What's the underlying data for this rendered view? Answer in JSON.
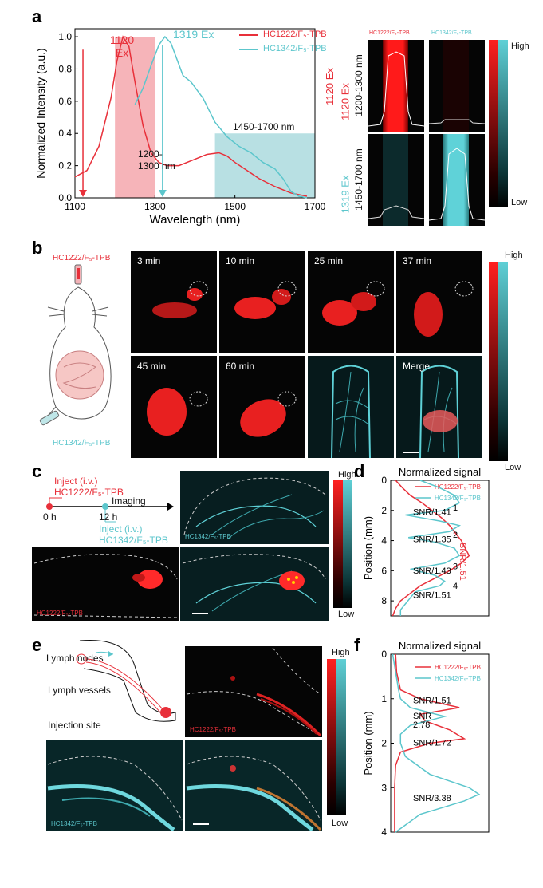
{
  "panel_a": {
    "letter": "a",
    "ex1": {
      "wavelength": "1120",
      "unit": "Ex"
    },
    "ex2_label": "1319 Ex",
    "band1_label": "1200-\n1300 nm",
    "band2_label": "1450-1700 nm",
    "legend": [
      "HC1222/F₅-TPB",
      "HC1342/F₅-TPB"
    ],
    "right": {
      "col_headers": [
        "HC1222/F₅-TPB",
        "HC1342/F₅-TPB"
      ],
      "row1": {
        "ex": "1120 Ex",
        "band": "1200-1300 nm"
      },
      "row2": {
        "ex": "1319 Ex",
        "band": "1450-1700 nm"
      },
      "high": "High",
      "low": "Low"
    }
  },
  "panel_b": {
    "letter": "b",
    "dye_top": "HC1222/F₅-TPB",
    "dye_bottom": "HC1342/F₅-TPB",
    "times": [
      "3 min",
      "10 min",
      "25 min",
      "37 min",
      "45 min",
      "60 min"
    ],
    "merge": "Merge",
    "high": "High",
    "low": "Low"
  },
  "panel_c": {
    "letter": "c",
    "step1": "Inject (i.v.)",
    "dye1": "HC1222/F₅-TPB",
    "imaging": "Imaging",
    "t0": "0 h",
    "t1": "12 h",
    "step2": "Inject (i.v.)",
    "dye2": "HC1342/F₅-TPB",
    "img_label_cyan": "HC1342/F₅-TPB",
    "img_label_red": "HC1222/F₅-TPB",
    "high": "High",
    "low": "Low"
  },
  "panel_d": {
    "letter": "d",
    "snr_side": "SNR/1.51"
  },
  "panel_e": {
    "letter": "e",
    "lymph_nodes": "Lymph nodes",
    "lymph_vessels": "Lymph vessels",
    "injection_site": "Injection site",
    "img_label_red": "HC1222/F₅-TPB",
    "img_label_cyan": "HC1342/F₅-TPB",
    "high": "High",
    "low": "Low"
  },
  "panel_f": {
    "letter": "f"
  },
  "chart_data": [
    {
      "type": "line",
      "panel": "a",
      "xlabel": "Wavelength (nm)",
      "ylabel": "Normalized Intensity (a.u.)",
      "xlim": [
        1100,
        1700
      ],
      "ylim": [
        0,
        1.05
      ],
      "xticks": [
        1100,
        1300,
        1500,
        1700
      ],
      "yticks": [
        0.0,
        0.2,
        0.4,
        0.6,
        0.8,
        1.0
      ],
      "shaded_bands": [
        {
          "range": [
            1200,
            1300
          ],
          "color": "#f4a1a8"
        },
        {
          "range": [
            1450,
            1700
          ],
          "color": "#a6d8dc"
        }
      ],
      "series": [
        {
          "name": "HC1222/F₅-TPB",
          "color": "#e8303a",
          "x": [
            1100,
            1130,
            1160,
            1190,
            1205,
            1220,
            1235,
            1250,
            1270,
            1290,
            1310,
            1330,
            1360,
            1400,
            1430,
            1460,
            1480,
            1500,
            1530,
            1560,
            1600,
            1640,
            1680
          ],
          "y": [
            0.13,
            0.17,
            0.32,
            0.62,
            0.85,
            1.0,
            0.94,
            0.72,
            0.45,
            0.28,
            0.22,
            0.2,
            0.2,
            0.24,
            0.27,
            0.28,
            0.26,
            0.22,
            0.17,
            0.12,
            0.07,
            0.03,
            0.01
          ]
        },
        {
          "name": "HC1342/F₅-TPB",
          "color": "#5cc6cc",
          "x": [
            1250,
            1270,
            1290,
            1310,
            1325,
            1340,
            1355,
            1370,
            1390,
            1420,
            1450,
            1480,
            1510,
            1540,
            1570,
            1600,
            1620,
            1640,
            1660,
            1680
          ],
          "y": [
            0.58,
            0.68,
            0.82,
            0.95,
            1.0,
            0.96,
            0.86,
            0.76,
            0.72,
            0.62,
            0.47,
            0.38,
            0.32,
            0.28,
            0.22,
            0.18,
            0.12,
            0.04,
            0.01,
            0.0
          ]
        }
      ]
    },
    {
      "type": "line",
      "panel": "d",
      "title": "Normalized signal",
      "ylabel": "Position (mm)",
      "ylim": [
        0,
        9
      ],
      "yticks": [
        0,
        2,
        4,
        6,
        8
      ],
      "orientation": "vertical",
      "annotations": [
        {
          "text": "1",
          "pos": 2.0
        },
        {
          "text": "SNR/1.41",
          "pos": 2.3
        },
        {
          "text": "2",
          "pos": 3.8
        },
        {
          "text": "SNR/1.35",
          "pos": 4.1
        },
        {
          "text": "3",
          "pos": 5.9
        },
        {
          "text": "SNR/1.43",
          "pos": 6.2
        },
        {
          "text": "4",
          "pos": 7.2
        },
        {
          "text": "SNR/1.51",
          "pos": 7.8
        }
      ],
      "series": [
        {
          "name": "HC1222/F₅-TPB",
          "color": "#e8303a",
          "pos": [
            0,
            0.5,
            1,
            1.5,
            2,
            2.5,
            3,
            3.5,
            4,
            4.5,
            5,
            5.5,
            6,
            6.5,
            7,
            7.5,
            8,
            8.5,
            9
          ],
          "signal": [
            0.05,
            0.12,
            0.2,
            0.32,
            0.42,
            0.52,
            0.6,
            0.66,
            0.72,
            0.76,
            0.8,
            0.72,
            0.6,
            0.45,
            0.3,
            0.2,
            0.1,
            0.05,
            0.02
          ]
        },
        {
          "name": "HC1342/F₅-TPB",
          "color": "#5cc6cc",
          "pos": [
            0,
            0.5,
            1,
            1.5,
            2,
            2.3,
            2.7,
            3,
            3.4,
            3.8,
            4.1,
            4.5,
            5,
            5.5,
            5.9,
            6.3,
            6.7,
            7,
            7.4,
            7.8,
            8.2,
            8.6,
            9
          ],
          "signal": [
            0.3,
            0.5,
            0.65,
            0.7,
            0.55,
            0.15,
            0.5,
            0.7,
            0.6,
            0.18,
            0.45,
            0.65,
            0.7,
            0.55,
            0.2,
            0.45,
            0.55,
            0.5,
            0.25,
            0.2,
            0.15,
            0.1,
            0.1
          ]
        }
      ]
    },
    {
      "type": "line",
      "panel": "f",
      "title": "Normalized signal",
      "ylabel": "Position (mm)",
      "ylim": [
        0,
        4
      ],
      "yticks": [
        0,
        1,
        2,
        3,
        4
      ],
      "orientation": "vertical",
      "annotations": [
        {
          "text": "SNR/1.51",
          "pos": 1.1
        },
        {
          "text": "SNR\n2.78",
          "pos": 1.45
        },
        {
          "text": "SNR/1.72",
          "pos": 2.05
        },
        {
          "text": "SNR/3.38",
          "pos": 3.3
        }
      ],
      "series": [
        {
          "name": "HC1222/F₅-TPB",
          "color": "#e8303a",
          "pos": [
            0,
            0.4,
            0.8,
            1.0,
            1.2,
            1.35,
            1.5,
            1.7,
            1.9,
            2.0,
            2.2,
            2.5,
            3.0,
            3.5,
            4.0
          ],
          "signal": [
            0.05,
            0.06,
            0.1,
            0.3,
            0.7,
            0.3,
            0.35,
            0.6,
            0.75,
            0.4,
            0.1,
            0.05,
            0.04,
            0.04,
            0.04
          ]
        },
        {
          "name": "HC1342/F₅-TPB",
          "color": "#5cc6cc",
          "pos": [
            0,
            0.4,
            0.8,
            1.0,
            1.2,
            1.4,
            1.6,
            1.8,
            2.0,
            2.3,
            2.7,
            3.0,
            3.15,
            3.3,
            3.6,
            4.0
          ],
          "signal": [
            0.02,
            0.05,
            0.08,
            0.1,
            0.2,
            0.55,
            0.2,
            0.1,
            0.1,
            0.15,
            0.4,
            0.8,
            0.9,
            0.75,
            0.3,
            0.05
          ]
        }
      ]
    }
  ]
}
